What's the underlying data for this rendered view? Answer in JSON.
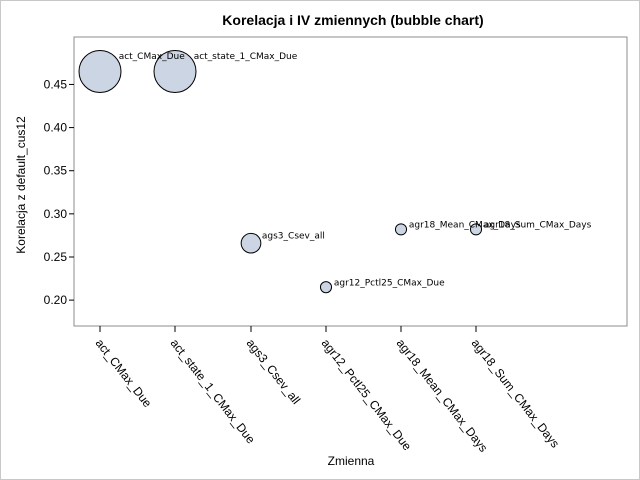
{
  "chart_data": {
    "type": "scatter",
    "title": "Korelacja i IV zmiennych (bubble chart)",
    "xlabel": "Zmienna",
    "ylabel": "Korelacja z default_cus12",
    "categories": [
      "act_CMax_Due",
      "act_state_1_CMax_Due",
      "ags3_Csev_all",
      "agr12_Pctl25_CMax_Due",
      "agr18_Mean_CMax_Days",
      "agr18_Sum_CMax_Days"
    ],
    "y_values": [
      0.465,
      0.465,
      0.266,
      0.215,
      0.282,
      0.282
    ],
    "bubble_sizes": [
      1.0,
      1.0,
      0.22,
      0.07,
      0.07,
      0.07
    ],
    "ylim": [
      0.17,
      0.505
    ],
    "yticks": [
      0.2,
      0.25,
      0.3,
      0.35,
      0.4,
      0.45
    ],
    "ytick_labels": [
      "0.20",
      "0.25",
      "0.30",
      "0.35",
      "0.40",
      "0.45"
    ],
    "grid": false,
    "bubble_color": "#cbd5e3",
    "bubble_edge": "#000000"
  }
}
